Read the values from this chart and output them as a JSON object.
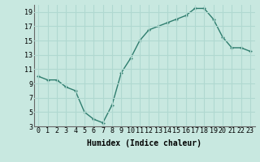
{
  "x": [
    0,
    1,
    2,
    3,
    4,
    5,
    6,
    7,
    8,
    9,
    10,
    11,
    12,
    13,
    14,
    15,
    16,
    17,
    18,
    19,
    20,
    21,
    22,
    23
  ],
  "y": [
    10,
    9.5,
    9.5,
    8.5,
    8,
    5,
    4,
    3.5,
    6,
    10.5,
    12.5,
    15,
    16.5,
    17,
    17.5,
    18,
    18.5,
    19.5,
    19.5,
    18,
    15.5,
    14,
    14,
    13.5
  ],
  "line_color": "#2e7d6e",
  "marker": "+",
  "bg_color": "#c8e8e0",
  "grid_color": "#b0d8d0",
  "xlabel": "Humidex (Indice chaleur)",
  "xlim": [
    -0.5,
    23.5
  ],
  "ylim": [
    3,
    20
  ],
  "yticks": [
    3,
    5,
    7,
    9,
    11,
    13,
    15,
    17,
    19
  ],
  "xticks": [
    0,
    1,
    2,
    3,
    4,
    5,
    6,
    7,
    8,
    9,
    10,
    11,
    12,
    13,
    14,
    15,
    16,
    17,
    18,
    19,
    20,
    21,
    22,
    23
  ],
  "xtick_labels": [
    "0",
    "1",
    "2",
    "3",
    "4",
    "5",
    "6",
    "7",
    "8",
    "9",
    "10",
    "11",
    "12",
    "13",
    "14",
    "15",
    "16",
    "17",
    "18",
    "19",
    "20",
    "21",
    "22",
    "23"
  ],
  "line_width": 1.0,
  "marker_size": 3,
  "font_size": 6,
  "xlabel_fontsize": 7
}
